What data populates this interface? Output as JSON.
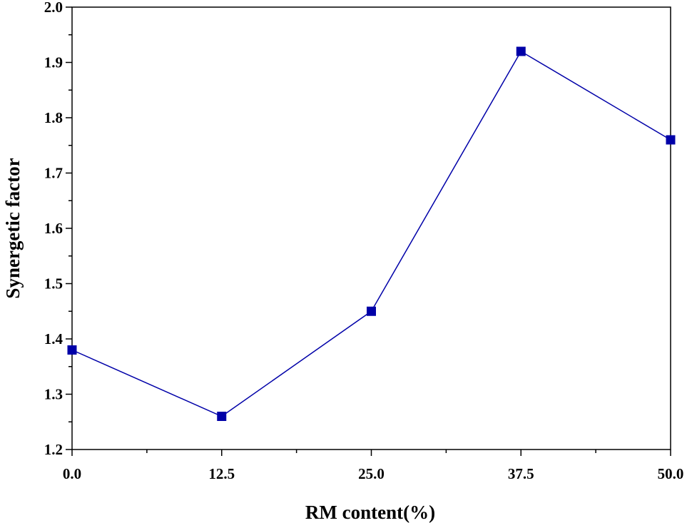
{
  "chart_data": {
    "type": "line",
    "title": "",
    "xlabel": "RM content(%)",
    "ylabel": "Synergetic factor",
    "xlim": [
      0,
      50
    ],
    "ylim": [
      1.2,
      2.0
    ],
    "x_ticks": [
      "0.0",
      "12.5",
      "25.0",
      "37.5",
      "50.0"
    ],
    "y_ticks": [
      "1.2",
      "1.3",
      "1.4",
      "1.5",
      "1.6",
      "1.7",
      "1.8",
      "1.9",
      "2.0"
    ],
    "grid": false,
    "legend": "none",
    "series": [
      {
        "x": [
          0.0,
          12.5,
          25.0,
          37.5,
          50.0
        ],
        "y": [
          1.38,
          1.26,
          1.45,
          1.92,
          1.76
        ],
        "color": "#0000a8",
        "marker": "square"
      }
    ]
  }
}
